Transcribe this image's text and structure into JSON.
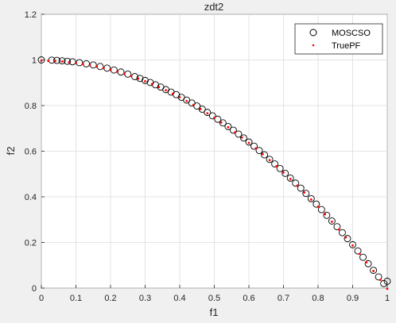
{
  "chart_data": {
    "type": "scatter",
    "title": "zdt2",
    "xlabel": "f1",
    "ylabel": "f2",
    "xlim": [
      0,
      1
    ],
    "ylim": [
      0,
      1.2
    ],
    "xticks": [
      "0",
      "0.1",
      "0.2",
      "0.3",
      "0.4",
      "0.5",
      "0.6",
      "0.7",
      "0.8",
      "0.9",
      "1"
    ],
    "yticks": [
      "0",
      "0.2",
      "0.4",
      "0.6",
      "0.8",
      "1",
      "1.2"
    ],
    "grid": true,
    "legend_position": "top-right",
    "series": [
      {
        "name": "MOSCSO",
        "marker": "circle-open",
        "color": "#000000",
        "x": [
          0.0,
          0.03,
          0.045,
          0.06,
          0.075,
          0.09,
          0.11,
          0.13,
          0.15,
          0.17,
          0.19,
          0.21,
          0.23,
          0.25,
          0.27,
          0.285,
          0.3,
          0.315,
          0.33,
          0.345,
          0.36,
          0.375,
          0.39,
          0.405,
          0.42,
          0.435,
          0.45,
          0.465,
          0.48,
          0.495,
          0.51,
          0.525,
          0.54,
          0.555,
          0.57,
          0.585,
          0.6,
          0.615,
          0.63,
          0.645,
          0.66,
          0.675,
          0.69,
          0.705,
          0.72,
          0.735,
          0.75,
          0.765,
          0.78,
          0.795,
          0.81,
          0.825,
          0.84,
          0.855,
          0.87,
          0.885,
          0.9,
          0.915,
          0.93,
          0.945,
          0.96,
          0.975,
          0.99,
          1.0
        ],
        "y": [
          1.0,
          0.999,
          0.998,
          0.996,
          0.994,
          0.992,
          0.988,
          0.983,
          0.978,
          0.971,
          0.964,
          0.956,
          0.947,
          0.938,
          0.927,
          0.919,
          0.91,
          0.901,
          0.891,
          0.881,
          0.87,
          0.859,
          0.848,
          0.836,
          0.824,
          0.811,
          0.798,
          0.784,
          0.77,
          0.755,
          0.74,
          0.724,
          0.708,
          0.692,
          0.675,
          0.658,
          0.64,
          0.622,
          0.603,
          0.584,
          0.564,
          0.544,
          0.524,
          0.503,
          0.482,
          0.46,
          0.438,
          0.415,
          0.392,
          0.368,
          0.344,
          0.319,
          0.294,
          0.269,
          0.243,
          0.217,
          0.19,
          0.163,
          0.135,
          0.107,
          0.078,
          0.049,
          0.02,
          0.03
        ]
      },
      {
        "name": "TruePF",
        "marker": "dot",
        "color": "#ff0000",
        "x": [
          0.0,
          0.02,
          0.04,
          0.06,
          0.08,
          0.1,
          0.12,
          0.14,
          0.16,
          0.18,
          0.2,
          0.22,
          0.24,
          0.26,
          0.28,
          0.3,
          0.32,
          0.34,
          0.36,
          0.38,
          0.4,
          0.42,
          0.44,
          0.46,
          0.48,
          0.5,
          0.52,
          0.54,
          0.56,
          0.58,
          0.6,
          0.62,
          0.64,
          0.66,
          0.68,
          0.7,
          0.72,
          0.74,
          0.76,
          0.78,
          0.8,
          0.82,
          0.84,
          0.86,
          0.88,
          0.9,
          0.92,
          0.94,
          0.96,
          0.98,
          1.0
        ],
        "y": [
          1.0,
          0.9996,
          0.9984,
          0.9964,
          0.9936,
          0.99,
          0.9856,
          0.9804,
          0.9744,
          0.9676,
          0.96,
          0.9516,
          0.9424,
          0.9324,
          0.9216,
          0.91,
          0.8976,
          0.8844,
          0.8704,
          0.8556,
          0.84,
          0.8236,
          0.8064,
          0.7884,
          0.7696,
          0.75,
          0.7296,
          0.7084,
          0.6864,
          0.6636,
          0.64,
          0.6156,
          0.5904,
          0.5644,
          0.5376,
          0.51,
          0.4816,
          0.4524,
          0.4224,
          0.3916,
          0.36,
          0.3276,
          0.2944,
          0.2604,
          0.2256,
          0.19,
          0.1536,
          0.1164,
          0.0784,
          0.0396,
          0.0
        ]
      }
    ]
  }
}
